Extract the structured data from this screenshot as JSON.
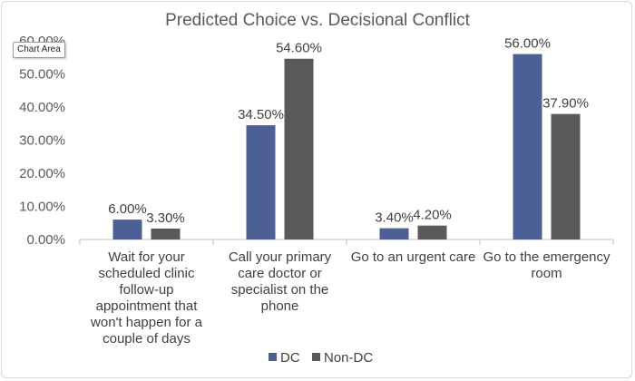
{
  "tooltip": {
    "label": "Chart Area"
  },
  "chart_data": {
    "type": "bar",
    "title": "Predicted Choice vs. Decisional Conflict",
    "xlabel": "",
    "ylabel": "",
    "ylim": [
      0,
      60
    ],
    "yticks": [
      "0.00%",
      "10.00%",
      "20.00%",
      "30.00%",
      "40.00%",
      "50.00%",
      "60.00%"
    ],
    "categories": [
      "Wait for your scheduled clinic follow-up appointment that won't happen for a couple of days",
      "Call your primary care doctor or specialist on the phone",
      "Go to an urgent care",
      "Go to the emergency room"
    ],
    "category_lines": [
      [
        "Wait for your",
        "scheduled clinic",
        "follow-up",
        "appointment that",
        "won't happen for a",
        "couple of days"
      ],
      [
        "Call your primary",
        "care doctor or",
        "specialist on the",
        "phone"
      ],
      [
        "Go to an urgent care"
      ],
      [
        "Go to the emergency",
        "room"
      ]
    ],
    "series": [
      {
        "name": "DC",
        "values": [
          6.0,
          34.5,
          3.4,
          56.0
        ],
        "labels": [
          "6.00%",
          "34.50%",
          "3.40%",
          "56.00%"
        ],
        "color": "#4d5f97"
      },
      {
        "name": "Non-DC",
        "values": [
          3.3,
          54.6,
          4.2,
          37.9
        ],
        "labels": [
          "3.30%",
          "54.60%",
          "4.20%",
          "37.90%"
        ],
        "color": "#5a5a5a"
      }
    ],
    "grid": false,
    "legend": "bottom"
  }
}
